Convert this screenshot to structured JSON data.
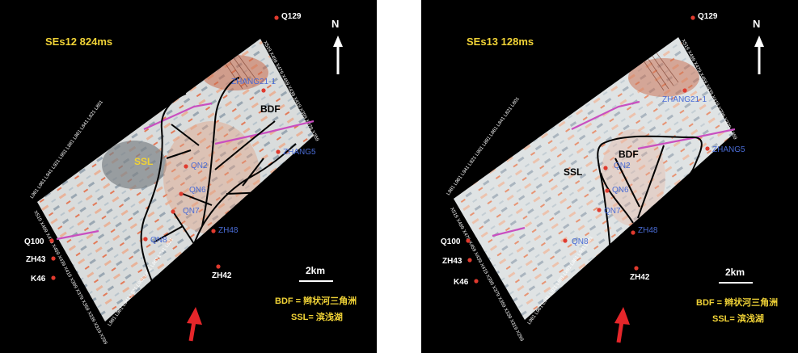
{
  "legend": {
    "bdf": "BDF = 辫状河三角洲",
    "ssl": "SSL= 滨浅湖"
  },
  "north_label": "N",
  "scale_label": "2km",
  "colors": {
    "background": "#000000",
    "title": "#f0d236",
    "well_marker": "#e03a2e",
    "inner_label": "#4a6cd6",
    "channel_line": "#000000",
    "fault_line": "#c94fc0",
    "arrow": "#e5262a"
  },
  "panels": [
    {
      "title": "SEs12   824ms",
      "facies": [
        {
          "label": "BDF",
          "color": "#000000"
        },
        {
          "label": "SSL",
          "color": "#f0d236"
        }
      ],
      "outer_wells": [
        "Q129",
        "Q100",
        "ZH43",
        "K46",
        "ZH42"
      ],
      "inner_wells": [
        "ZHANG21-1",
        "ZHANG5",
        "QN2",
        "QN6",
        "QN7",
        "QN8",
        "ZH48"
      ]
    },
    {
      "title": "SEs13   128ms",
      "facies": [
        {
          "label": "BDF",
          "color": "#000000"
        },
        {
          "label": "SSL",
          "color": "#000000"
        }
      ],
      "outer_wells": [
        "Q129",
        "Q100",
        "ZH43",
        "K46",
        "ZH42"
      ],
      "inner_wells": [
        "ZHANG21-1",
        "ZHANG5",
        "QN2",
        "QN6",
        "QN7",
        "QN8",
        "ZH48"
      ]
    }
  ]
}
